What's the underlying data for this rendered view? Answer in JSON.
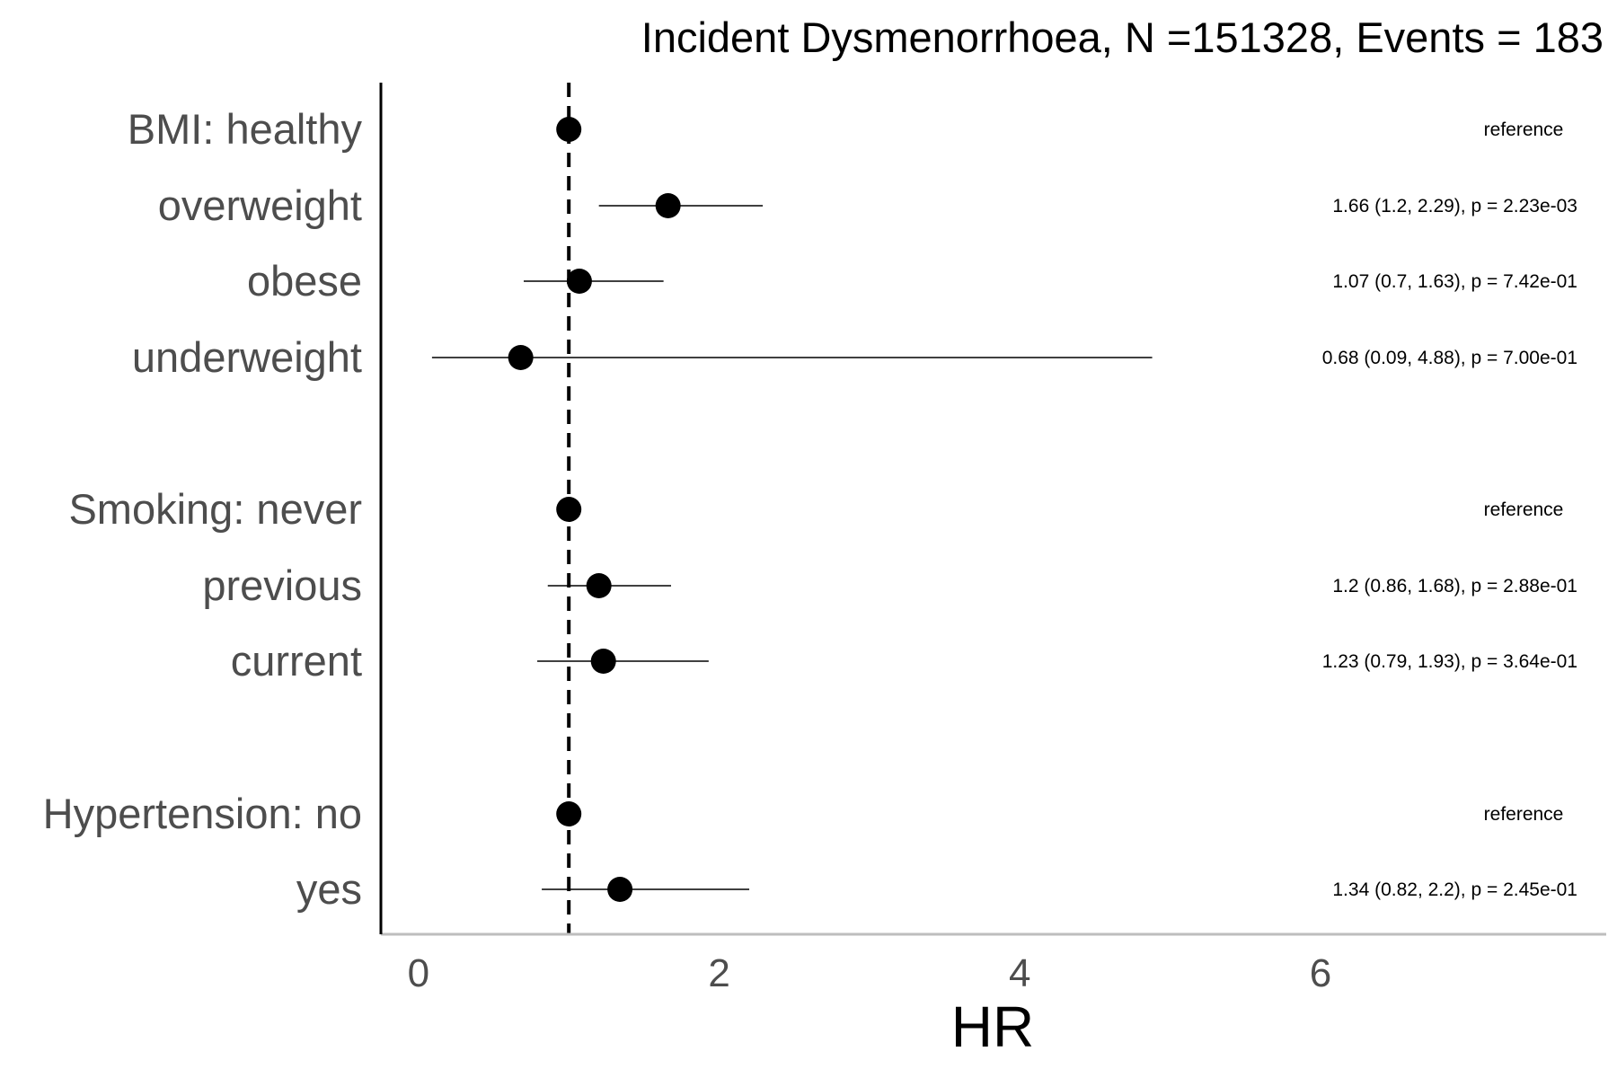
{
  "chart_data": {
    "type": "forest",
    "title": "Incident Dysmenorrhoea, N =151328, Events = 183",
    "xlabel": "HR",
    "xlim": [
      -0.25,
      7.9
    ],
    "xticks": [
      0,
      2,
      4,
      6
    ],
    "xtick_labels": [
      "0",
      "2",
      "4",
      "6"
    ],
    "reference_line": 1,
    "rows": [
      {
        "label": "BMI: healthy",
        "hr": 1,
        "lower": null,
        "upper": null,
        "text": "reference"
      },
      {
        "label": "overweight",
        "hr": 1.66,
        "lower": 1.2,
        "upper": 2.29,
        "text": "1.66 (1.2, 2.29), p = 2.23e-03"
      },
      {
        "label": "obese",
        "hr": 1.07,
        "lower": 0.7,
        "upper": 1.63,
        "text": "1.07 (0.7, 1.63), p = 7.42e-01"
      },
      {
        "label": "underweight",
        "hr": 0.68,
        "lower": 0.09,
        "upper": 4.88,
        "text": "0.68 (0.09, 4.88), p = 7.00e-01"
      },
      {
        "label": "Smoking: never",
        "hr": 1,
        "lower": null,
        "upper": null,
        "text": "reference"
      },
      {
        "label": "previous",
        "hr": 1.2,
        "lower": 0.86,
        "upper": 1.68,
        "text": "1.2 (0.86, 1.68), p = 2.88e-01"
      },
      {
        "label": "current",
        "hr": 1.23,
        "lower": 0.79,
        "upper": 1.93,
        "text": "1.23 (0.79, 1.93), p = 3.64e-01"
      },
      {
        "label": "Hypertension: no",
        "hr": 1,
        "lower": null,
        "upper": null,
        "text": "reference"
      },
      {
        "label": "yes",
        "hr": 1.34,
        "lower": 0.82,
        "upper": 2.2,
        "text": "1.34 (0.82, 2.2), p = 2.45e-01"
      }
    ]
  }
}
